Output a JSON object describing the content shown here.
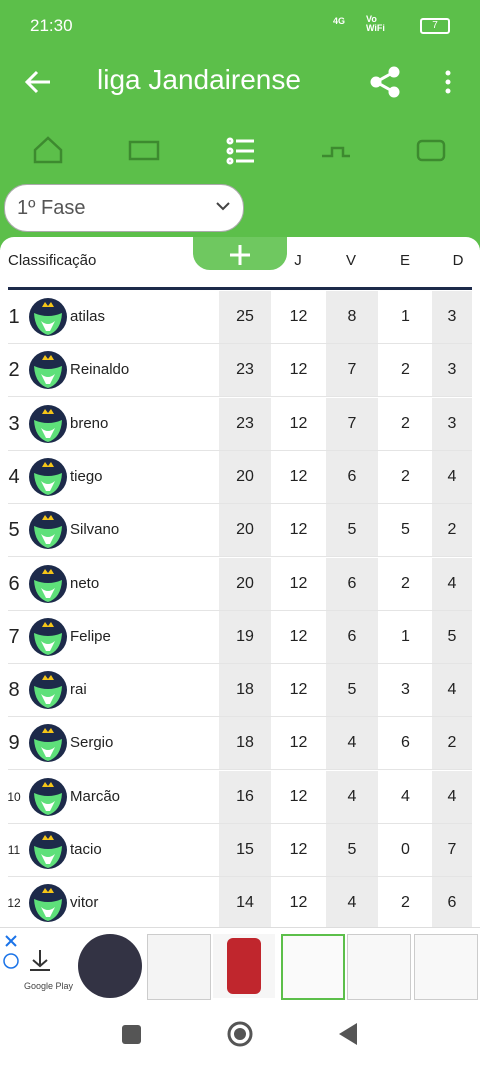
{
  "status_bar": {
    "time": "21:30",
    "network": "4G",
    "wifi": "Vo WiFi",
    "battery": "7"
  },
  "app_bar": {
    "title": "liga Jandairense"
  },
  "phase_selector": {
    "label": "1º Fase"
  },
  "table": {
    "headers": [
      "Classificação",
      "J",
      "V",
      "E",
      "D"
    ],
    "rows": [
      {
        "rank": 1,
        "name": "atilas",
        "stats": [
          25,
          12,
          8,
          1,
          3
        ]
      },
      {
        "rank": 2,
        "name": "Reinaldo",
        "stats": [
          23,
          12,
          7,
          2,
          3
        ]
      },
      {
        "rank": 3,
        "name": "breno",
        "stats": [
          23,
          12,
          7,
          2,
          3
        ]
      },
      {
        "rank": 4,
        "name": "tiego",
        "stats": [
          20,
          12,
          6,
          2,
          4
        ]
      },
      {
        "rank": 5,
        "name": "Silvano",
        "stats": [
          20,
          12,
          5,
          5,
          2
        ]
      },
      {
        "rank": 6,
        "name": "neto",
        "stats": [
          20,
          12,
          6,
          2,
          4
        ]
      },
      {
        "rank": 7,
        "name": "Felipe",
        "stats": [
          19,
          12,
          6,
          1,
          5
        ]
      },
      {
        "rank": 8,
        "name": "rai",
        "stats": [
          18,
          12,
          5,
          3,
          4
        ]
      },
      {
        "rank": 9,
        "name": "Sergio",
        "stats": [
          18,
          12,
          4,
          6,
          2
        ]
      },
      {
        "rank": 10,
        "name": "Marcão",
        "stats": [
          16,
          12,
          4,
          4,
          4
        ]
      },
      {
        "rank": 11,
        "name": "tacio",
        "stats": [
          15,
          12,
          5,
          0,
          7
        ]
      },
      {
        "rank": 12,
        "name": "vitor",
        "stats": [
          14,
          12,
          4,
          2,
          6
        ]
      }
    ]
  },
  "ad": {
    "store": "Google Play"
  }
}
